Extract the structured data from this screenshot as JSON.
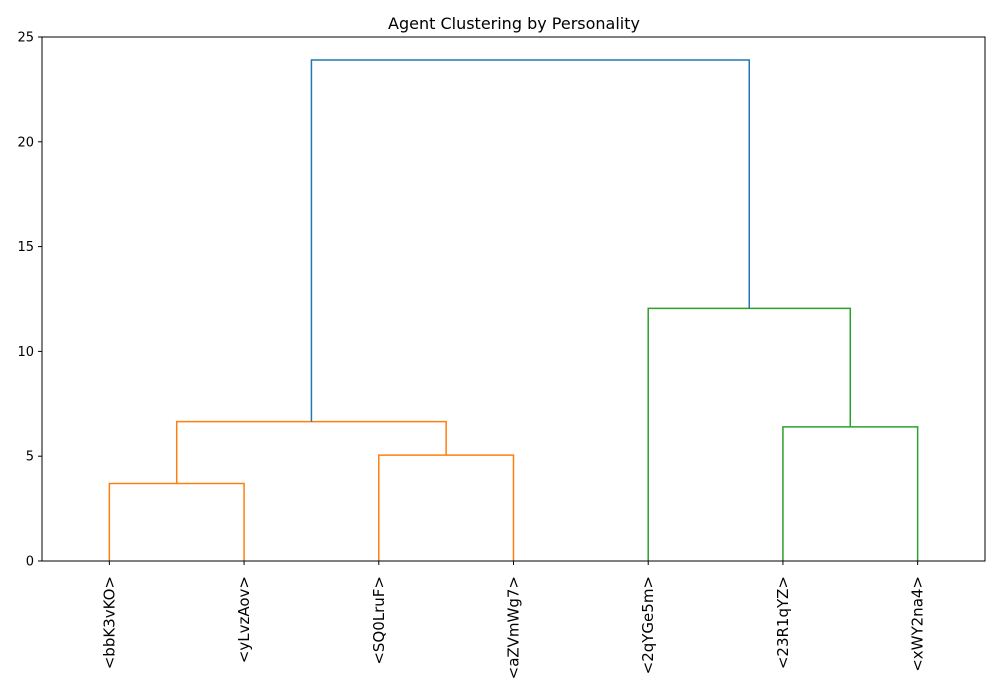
{
  "chart_data": {
    "type": "dendrogram",
    "title": "Agent Clustering by Personality",
    "xlabel": "",
    "ylabel": "",
    "ylim": [
      0,
      25
    ],
    "yticks": [
      0,
      5,
      10,
      15,
      20,
      25
    ],
    "grid": false,
    "leaves": [
      "<bbK3vKO>",
      "<yLvzAov>",
      "<SQ0LruF>",
      "<aZVmWg7>",
      "<2qYGe5m>",
      "<23R1qYZ>",
      "<xWY2na4>"
    ],
    "colors": {
      "cluster_1": "#ff7f0e",
      "cluster_2": "#2ca02c",
      "link_above_threshold": "#1f77b4"
    },
    "links": [
      {
        "left": 0,
        "right": 1,
        "height": 3.7,
        "left_height": 0,
        "right_height": 0,
        "color": "cluster_1"
      },
      {
        "left": 2,
        "right": 3,
        "height": 5.05,
        "left_height": 0,
        "right_height": 0,
        "color": "cluster_1"
      },
      {
        "left": 0.5,
        "right": 2.5,
        "height": 6.65,
        "left_height": 3.7,
        "right_height": 5.05,
        "color": "cluster_1"
      },
      {
        "left": 5,
        "right": 6,
        "height": 6.4,
        "left_height": 0,
        "right_height": 0,
        "color": "cluster_2"
      },
      {
        "left": 4,
        "right": 5.5,
        "height": 12.05,
        "left_height": 0,
        "right_height": 6.4,
        "color": "cluster_2"
      },
      {
        "left": 1.5,
        "right": 4.75,
        "height": 23.9,
        "left_height": 6.65,
        "right_height": 12.05,
        "color": "link_above_threshold"
      }
    ]
  }
}
